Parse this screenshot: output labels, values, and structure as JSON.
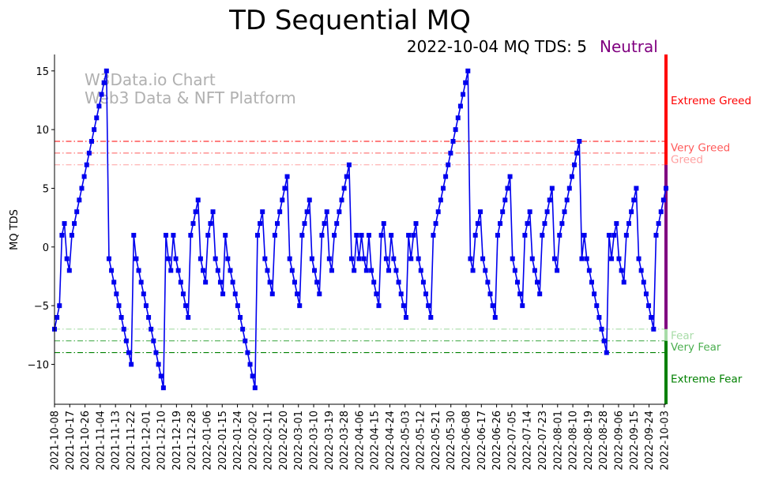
{
  "title": "TD Sequential MQ",
  "subtitle": "2022-10-04 MQ TDS: 5",
  "status": {
    "label": "Neutral",
    "color": "#800080"
  },
  "watermark": {
    "line1": "W3Data.io Chart",
    "line2": "Web3 Data & NFT Platform"
  },
  "chart_data": {
    "type": "line",
    "ylabel": "MQ TDS",
    "ylim": [
      -13.4,
      16.4
    ],
    "yticks": [
      -10,
      -5,
      0,
      5,
      10,
      15
    ],
    "x_start": "2021-10-08",
    "x_end": "2022-10-04",
    "xticks": [
      "2021-10-08",
      "2021-10-17",
      "2021-10-26",
      "2021-11-04",
      "2021-11-13",
      "2021-11-22",
      "2021-12-01",
      "2021-12-10",
      "2021-12-19",
      "2021-12-28",
      "2022-01-06",
      "2022-01-15",
      "2022-01-24",
      "2022-02-02",
      "2022-02-11",
      "2022-02-20",
      "2022-03-01",
      "2022-03-10",
      "2022-03-19",
      "2022-03-28",
      "2022-04-06",
      "2022-04-15",
      "2022-04-24",
      "2022-05-03",
      "2022-05-12",
      "2022-05-21",
      "2022-05-30",
      "2022-06-08",
      "2022-06-17",
      "2022-06-26",
      "2022-07-05",
      "2022-07-14",
      "2022-07-23",
      "2022-08-01",
      "2022-08-10",
      "2022-08-19",
      "2022-08-28",
      "2022-09-06",
      "2022-09-15",
      "2022-09-24",
      "2022-10-03"
    ],
    "series": [
      {
        "color": "#0000ee",
        "marker": "square",
        "values": [
          -7,
          -6,
          -5,
          1,
          2,
          -1,
          -2,
          1,
          2,
          3,
          4,
          5,
          6,
          7,
          8,
          9,
          10,
          11,
          12,
          13,
          14,
          15,
          -1,
          -2,
          -3,
          -4,
          -5,
          -6,
          -7,
          -8,
          -9,
          -10,
          1,
          -1,
          -2,
          -3,
          -4,
          -5,
          -6,
          -7,
          -8,
          -9,
          -10,
          -11,
          -12,
          1,
          -1,
          -2,
          1,
          -1,
          -2,
          -3,
          -4,
          -5,
          -6,
          1,
          2,
          3,
          4,
          -1,
          -2,
          -3,
          1,
          2,
          3,
          -1,
          -2,
          -3,
          -4,
          1,
          -1,
          -2,
          -3,
          -4,
          -5,
          -6,
          -7,
          -8,
          -9,
          -10,
          -11,
          -12,
          1,
          2,
          3,
          -1,
          -2,
          -3,
          -4,
          1,
          2,
          3,
          4,
          5,
          6,
          -1,
          -2,
          -3,
          -4,
          -5,
          1,
          2,
          3,
          4,
          -1,
          -2,
          -3,
          -4,
          1,
          2,
          3,
          -1,
          -2,
          1,
          2,
          3,
          4,
          5,
          6,
          7,
          -1,
          -2,
          1,
          -1,
          1,
          -1,
          -2,
          1,
          -2,
          -3,
          -4,
          -5,
          1,
          2,
          -1,
          -2,
          1,
          -1,
          -2,
          -3,
          -4,
          -5,
          -6,
          1,
          -1,
          1,
          2,
          -1,
          -2,
          -3,
          -4,
          -5,
          -6,
          1,
          2,
          3,
          4,
          5,
          6,
          7,
          8,
          9,
          10,
          11,
          12,
          13,
          14,
          15,
          -1,
          -2,
          1,
          2,
          3,
          -1,
          -2,
          -3,
          -4,
          -5,
          -6,
          1,
          2,
          3,
          4,
          5,
          6,
          -1,
          -2,
          -3,
          -4,
          -5,
          1,
          2,
          3,
          -1,
          -2,
          -3,
          -4,
          1,
          2,
          3,
          4,
          5,
          -1,
          -2,
          1,
          2,
          3,
          4,
          5,
          6,
          7,
          8,
          9,
          -1,
          1,
          -1,
          -2,
          -3,
          -4,
          -5,
          -6,
          -7,
          -8,
          -9,
          1,
          -1,
          1,
          2,
          -1,
          -2,
          -3,
          1,
          2,
          3,
          4,
          5,
          -1,
          -2,
          -3,
          -4,
          -5,
          -6,
          -7,
          1,
          2,
          3,
          4,
          5
        ]
      }
    ],
    "levels": [
      {
        "value": 9,
        "label": "Extreme Greed",
        "color": "#ff0000"
      },
      {
        "value": 8,
        "label": "Very Greed",
        "color": "#ff5a5a"
      },
      {
        "value": 7,
        "label": "Greed",
        "color": "#ffa0a0"
      },
      {
        "value": -7,
        "label": "Fear",
        "color": "#a8dca8"
      },
      {
        "value": -8,
        "label": "Very Fear",
        "color": "#4caf50"
      },
      {
        "value": -9,
        "label": "Extreme Fear",
        "color": "#008000"
      }
    ],
    "side_bar": [
      {
        "from": 7,
        "to": 16.4,
        "color": "#ff0000"
      },
      {
        "from": -7,
        "to": 7,
        "color": "#800080"
      },
      {
        "from": -8,
        "to": -7,
        "color": "#a8dca8"
      },
      {
        "from": -13.4,
        "to": -8,
        "color": "#008000"
      }
    ],
    "grid": false
  }
}
